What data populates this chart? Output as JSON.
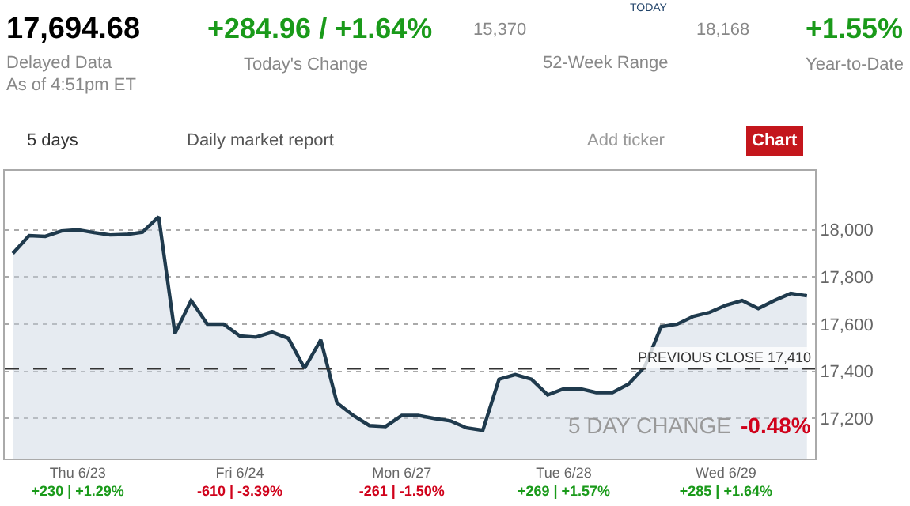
{
  "chart_data": {
    "type": "area",
    "categories": [
      null,
      null,
      null,
      null,
      "Thu 6/23\n+230 | +1.29%",
      null,
      null,
      null,
      null,
      null,
      null,
      null,
      null,
      null,
      "Fri 6/24\n-610 | -3.39%",
      null,
      null,
      null,
      null,
      null,
      null,
      null,
      null,
      null,
      "Mon 6/27\n-261 | -1.50%",
      null,
      null,
      null,
      null,
      null,
      null,
      null,
      null,
      null,
      "Tue 6/28\n+269 | +1.57%",
      null,
      null,
      null,
      null,
      null,
      null,
      null,
      null,
      null,
      "Wed 6/29\n+285 | +1.64%",
      null,
      null,
      null,
      null,
      null
    ],
    "series": [
      {
        "color": "#1f3a4d",
        "values": [
          17900,
          17975,
          17972,
          17995,
          18000,
          17988,
          17978,
          17980,
          17990,
          18055,
          17560,
          17700,
          17600,
          17600,
          17550,
          17545,
          17566,
          17540,
          17413,
          17533,
          17266,
          17213,
          17170,
          17166,
          17213,
          17213,
          17200,
          17190,
          17160,
          17150,
          17366,
          17386,
          17366,
          17300,
          17326,
          17326,
          17310,
          17310,
          17346,
          17420,
          17589,
          17600,
          17633,
          17650,
          17680,
          17700,
          17666,
          17700,
          17730,
          17720
        ]
      }
    ],
    "ylim": [
      17030,
      18250
    ],
    "yticks": [
      {
        "value": 17200,
        "label": "17,200"
      },
      {
        "value": 17400,
        "label": "17,400"
      },
      {
        "value": 17600,
        "label": "17,600"
      },
      {
        "value": 17800,
        "label": "17,800"
      },
      {
        "value": 18000,
        "label": "18,000"
      }
    ],
    "grid": "y",
    "ref_lines": [
      {
        "axis": "y",
        "value": 17410,
        "label": "PREVIOUS CLOSE 17,410",
        "color": "#333333",
        "line_style": "dashed"
      }
    ],
    "annotations": [
      "17,694.68",
      "Delayed Data",
      "As of 4:51pm ET",
      "+284.96 / +1.64%",
      "Today's Change",
      "15,370",
      "TODAY",
      "18,168",
      "52-Week Range",
      "+1.55%",
      "Year-to-Date",
      "5 days",
      "Daily market report",
      "Add ticker",
      "Chart",
      "5 DAY CHANGE",
      "-0.48%"
    ]
  }
}
